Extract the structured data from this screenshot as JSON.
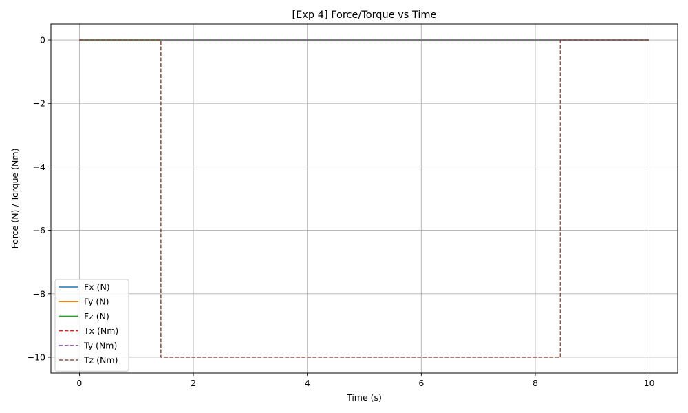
{
  "chart_data": {
    "type": "line",
    "title": "[Exp 4] Force/Torque vs Time",
    "xlabel": "Time (s)",
    "ylabel": "Force (N) / Torque (Nm)",
    "xlim": [
      -0.5,
      10.5
    ],
    "ylim": [
      -10.5,
      0.5
    ],
    "xticks": [
      0,
      2,
      4,
      6,
      8,
      10
    ],
    "yticks": [
      0,
      -2,
      -4,
      -6,
      -8,
      -10
    ],
    "xtick_labels": [
      "0",
      "2",
      "4",
      "6",
      "8",
      "10"
    ],
    "ytick_labels": [
      "0",
      "−2",
      "−4",
      "−6",
      "−8",
      "−10"
    ],
    "grid": true,
    "legend_position": "lower-left",
    "series": [
      {
        "name": "Fx (N)",
        "color": "#1f77b4",
        "style": "solid",
        "x": [
          0,
          10
        ],
        "y": [
          0,
          0
        ]
      },
      {
        "name": "Fy (N)",
        "color": "#ff7f0e",
        "style": "solid",
        "x": [
          0,
          10
        ],
        "y": [
          0,
          0
        ]
      },
      {
        "name": "Fz (N)",
        "color": "#2ca02c",
        "style": "solid",
        "x": [
          0,
          10
        ],
        "y": [
          0,
          0
        ]
      },
      {
        "name": "Tx (Nm)",
        "color": "#d62728",
        "style": "dashed",
        "x": [
          0,
          10
        ],
        "y": [
          0,
          0
        ]
      },
      {
        "name": "Ty (Nm)",
        "color": "#9467bd",
        "style": "dashed",
        "x": [
          0,
          10
        ],
        "y": [
          0,
          0
        ]
      },
      {
        "name": "Tz (Nm)",
        "color": "#8c564b",
        "style": "dashed",
        "x": [
          0,
          1.43,
          1.43,
          8.44,
          8.44,
          10
        ],
        "y": [
          0,
          0,
          -10,
          -10,
          0,
          0
        ]
      }
    ]
  }
}
